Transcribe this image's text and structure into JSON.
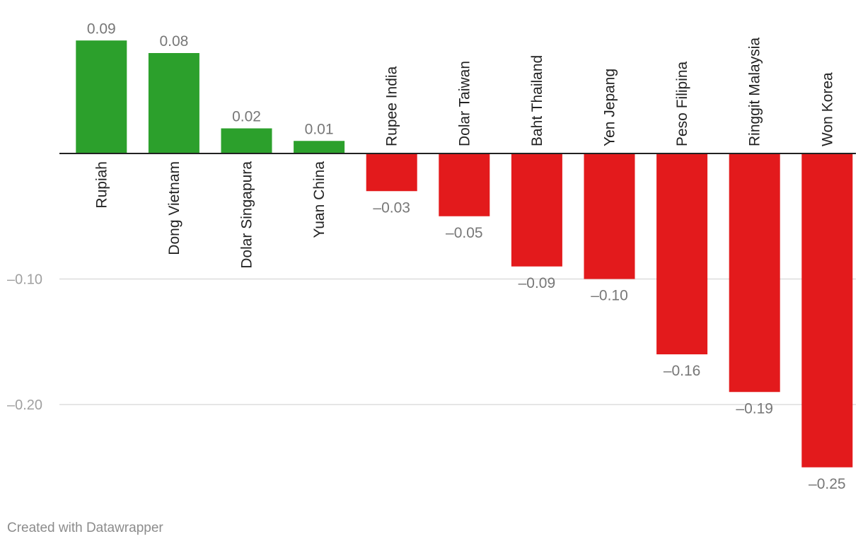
{
  "chart_data": {
    "type": "bar",
    "categories": [
      "Rupiah",
      "Dong Vietnam",
      "Dolar Singapura",
      "Yuan China",
      "Rupee India",
      "Dolar Taiwan",
      "Baht Thailand",
      "Yen Jepang",
      "Peso Filipina",
      "Ringgit Malaysia",
      "Won Korea"
    ],
    "values": [
      0.09,
      0.08,
      0.02,
      0.01,
      -0.03,
      -0.05,
      -0.09,
      -0.1,
      -0.16,
      -0.19,
      -0.25
    ],
    "value_labels": [
      "0.09",
      "0.08",
      "0.02",
      "0.01",
      "–0.03",
      "–0.05",
      "–0.09",
      "–0.10",
      "–0.16",
      "–0.19",
      "–0.25"
    ],
    "y_ticks": [
      -0.1,
      -0.2
    ],
    "y_tick_labels": [
      "–0.10",
      "–0.20"
    ],
    "ylim": [
      -0.25,
      0.09
    ],
    "xlabel": "",
    "ylabel": "",
    "title": "",
    "grid": true,
    "colors": {
      "positive": "#2ca02c",
      "negative": "#e31a1c",
      "grid": "#dddddd",
      "axis": "#222222"
    }
  },
  "footer": {
    "credit": "Created with Datawrapper"
  }
}
